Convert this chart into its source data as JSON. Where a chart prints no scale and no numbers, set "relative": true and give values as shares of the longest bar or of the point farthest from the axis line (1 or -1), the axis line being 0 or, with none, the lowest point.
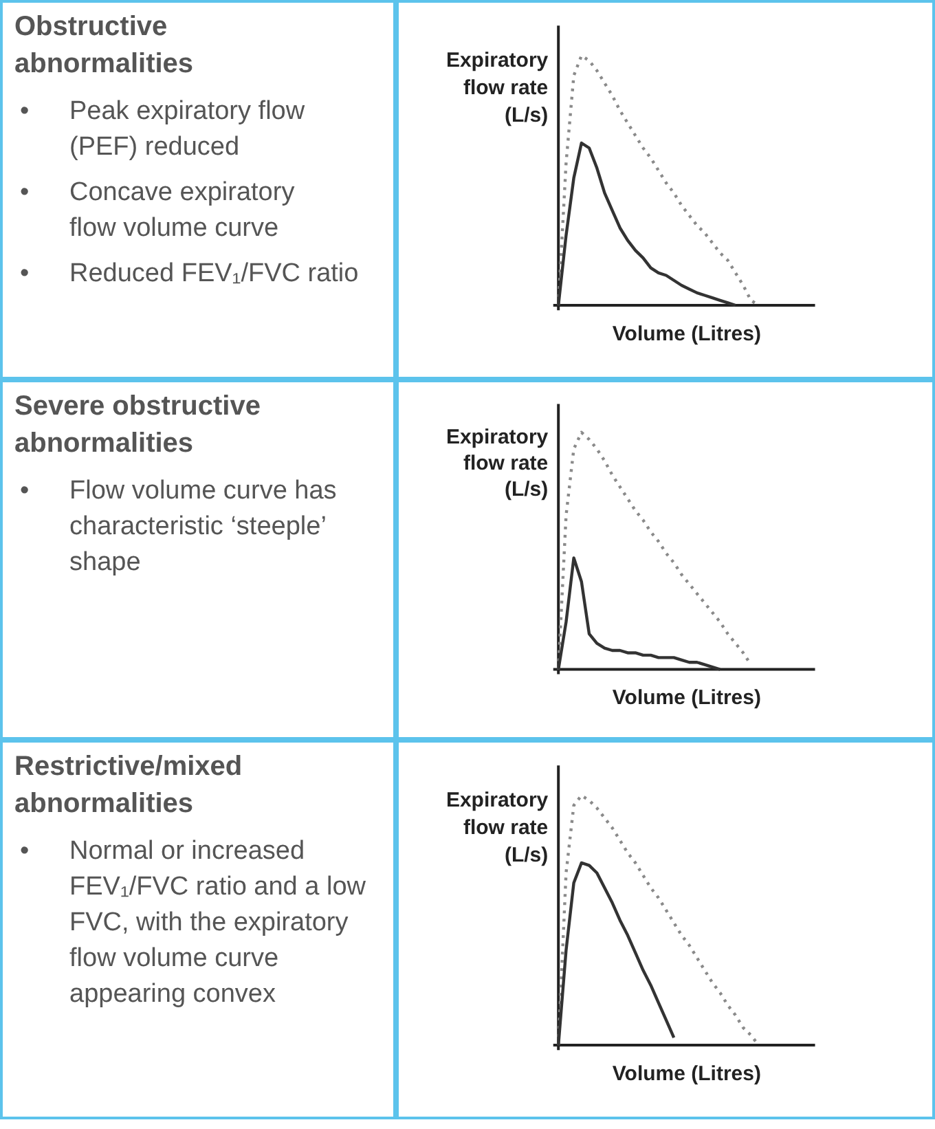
{
  "chart_data": [
    {
      "type": "other",
      "title": "Obstructive abnormalities",
      "annotations": [
        "• Peak expiratory flow (PEF) reduced",
        "• Concave expiratory flow volume curve",
        "• Reduced FEV₁/FVC ratio"
      ]
    },
    {
      "type": "line",
      "relative": true,
      "xlabel": "Volume (Litres)",
      "ylabel": "Expiratory flow rate (L/s)",
      "categories": [
        null,
        null,
        null,
        null,
        null,
        null,
        null,
        null,
        null,
        null,
        null,
        null,
        null,
        null,
        null,
        null,
        null,
        null,
        null,
        null,
        null,
        null,
        null,
        null,
        null,
        null,
        null
      ],
      "series": [
        {
          "color": "#8a8a8a",
          "line_style": "dotted",
          "values": [
            0,
            0.57,
            0.92,
            1.0,
            0.98,
            0.94,
            0.89,
            0.84,
            0.78,
            0.73,
            0.68,
            0.63,
            0.59,
            0.54,
            0.49,
            0.45,
            0.4,
            0.36,
            0.32,
            0.29,
            0.25,
            0.21,
            0.18,
            0.13,
            0.08,
            0.02,
            0
          ]
        },
        {
          "color": "#333333",
          "line_style": "solid",
          "values": [
            0,
            0.28,
            0.51,
            0.65,
            0.63,
            0.55,
            0.45,
            0.38,
            0.31,
            0.26,
            0.22,
            0.19,
            0.15,
            0.13,
            0.12,
            0.1,
            0.08,
            0.065,
            0.05,
            0.04,
            0.03,
            0.02,
            0.01,
            0,
            null,
            null,
            null
          ]
        }
      ]
    },
    {
      "type": "other",
      "title": "Severe obstructive abnormalities",
      "annotations": [
        "• Flow volume curve has characteristic ‘steeple’ shape"
      ]
    },
    {
      "type": "line",
      "relative": true,
      "xlabel": "Volume (Litres)",
      "ylabel": "Expiratory flow rate (L/s)",
      "categories": [
        null,
        null,
        null,
        null,
        null,
        null,
        null,
        null,
        null,
        null,
        null,
        null,
        null,
        null,
        null,
        null,
        null,
        null,
        null,
        null,
        null,
        null,
        null,
        null,
        null,
        null,
        null
      ],
      "series": [
        {
          "color": "#8a8a8a",
          "line_style": "dotted",
          "values": [
            0,
            0.65,
            0.93,
            1.0,
            0.97,
            0.93,
            0.88,
            0.82,
            0.77,
            0.72,
            0.67,
            0.63,
            0.58,
            0.54,
            0.49,
            0.45,
            0.4,
            0.36,
            0.32,
            0.28,
            0.24,
            0.2,
            0.15,
            0.11,
            0.07,
            0.02,
            null
          ]
        },
        {
          "color": "#333333",
          "line_style": "solid",
          "values": [
            0,
            0.2,
            0.47,
            0.37,
            0.15,
            0.11,
            0.09,
            0.08,
            0.08,
            0.07,
            0.07,
            0.06,
            0.06,
            0.05,
            0.05,
            0.05,
            0.04,
            0.03,
            0.03,
            0.02,
            0.01,
            0,
            null,
            null,
            null,
            null,
            null
          ]
        }
      ]
    },
    {
      "type": "other",
      "title": "Restrictive/mixed abnormalities",
      "annotations": [
        "• Normal or increased FEV₁/FVC ratio and a low FVC, with the expiratory flow volume curve appearing convex"
      ]
    },
    {
      "type": "line",
      "relative": true,
      "xlabel": "Volume (Litres)",
      "ylabel": "Expiratory flow rate (L/s)",
      "categories": [
        null,
        null,
        null,
        null,
        null,
        null,
        null,
        null,
        null,
        null,
        null,
        null,
        null,
        null,
        null,
        null,
        null,
        null,
        null,
        null,
        null,
        null,
        null,
        null,
        null,
        null,
        null
      ],
      "series": [
        {
          "color": "#8a8a8a",
          "line_style": "dotted",
          "values": [
            0,
            0.69,
            0.96,
            1.0,
            0.98,
            0.95,
            0.91,
            0.87,
            0.82,
            0.77,
            0.73,
            0.68,
            0.63,
            0.59,
            0.54,
            0.49,
            0.44,
            0.4,
            0.35,
            0.3,
            0.25,
            0.21,
            0.16,
            0.12,
            0.07,
            0.04,
            0
          ]
        },
        {
          "color": "#333333",
          "line_style": "solid",
          "values": [
            0,
            0.38,
            0.65,
            0.73,
            0.72,
            0.69,
            0.63,
            0.57,
            0.5,
            0.44,
            0.37,
            0.3,
            0.24,
            0.17,
            0.1,
            0.03,
            null,
            null,
            null,
            null,
            null,
            null,
            null,
            null,
            null,
            null,
            null
          ]
        }
      ]
    }
  ]
}
